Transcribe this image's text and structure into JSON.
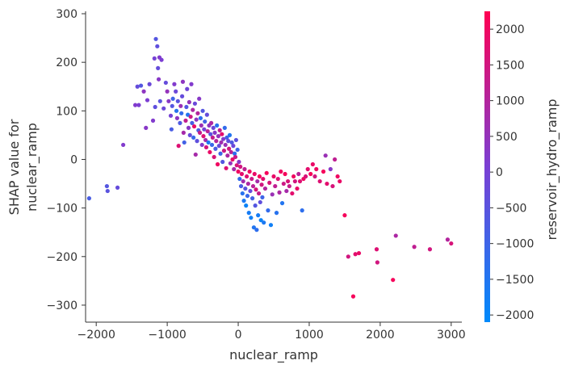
{
  "chart_data": {
    "type": "scatter",
    "title": "",
    "xlabel": "nuclear_ramp",
    "ylabel_lines": [
      "SHAP value for",
      "nuclear_ramp"
    ],
    "xlim": [
      -2150,
      3150
    ],
    "ylim": [
      -335,
      305
    ],
    "x_ticks": [
      -2000,
      -1000,
      0,
      1000,
      2000,
      3000
    ],
    "y_ticks": [
      300,
      200,
      100,
      0,
      -100,
      -200,
      -300
    ],
    "grid": false,
    "colorbar": {
      "label": "reservoir_hydro_ramp",
      "range": [
        -2100,
        2250
      ],
      "ticks": [
        2000,
        1500,
        1000,
        500,
        0,
        -500,
        -1000,
        -1500,
        -2000
      ],
      "low_color": "#008afb",
      "mid_color": "#7a3fd4",
      "high_color": "#ff0052"
    },
    "series": [
      {
        "points": [
          [
            -2100,
            -80,
            -800
          ],
          [
            -1850,
            -55,
            -600
          ],
          [
            -1840,
            -65,
            -500
          ],
          [
            -1700,
            -58,
            -300
          ],
          [
            -1620,
            30,
            200
          ],
          [
            -1450,
            112,
            200
          ],
          [
            -1420,
            150,
            -300
          ],
          [
            -1400,
            112,
            100
          ],
          [
            -1370,
            152,
            -600
          ],
          [
            -1330,
            140,
            400
          ],
          [
            -1300,
            65,
            300
          ],
          [
            -1280,
            122,
            100
          ],
          [
            -1250,
            155,
            -200
          ],
          [
            -1200,
            80,
            200
          ],
          [
            -1180,
            208,
            0
          ],
          [
            -1170,
            108,
            -400
          ],
          [
            -1160,
            248,
            -600
          ],
          [
            -1140,
            233,
            -400
          ],
          [
            -1130,
            188,
            -300
          ],
          [
            -1120,
            165,
            300
          ],
          [
            -1110,
            210,
            200
          ],
          [
            -1100,
            120,
            -500
          ],
          [
            -1080,
            205,
            100
          ],
          [
            -1050,
            105,
            -200
          ],
          [
            -1020,
            158,
            -300
          ],
          [
            -1000,
            140,
            500
          ],
          [
            -980,
            120,
            300
          ],
          [
            -950,
            90,
            0
          ],
          [
            -940,
            62,
            -800
          ],
          [
            -930,
            110,
            -600
          ],
          [
            -920,
            125,
            -1000
          ],
          [
            -900,
            155,
            200
          ],
          [
            -880,
            140,
            -200
          ],
          [
            -870,
            100,
            -1400
          ],
          [
            -860,
            85,
            400
          ],
          [
            -850,
            120,
            -500
          ],
          [
            -840,
            28,
            1700
          ],
          [
            -820,
            75,
            -700
          ],
          [
            -810,
            110,
            600
          ],
          [
            -800,
            95,
            -1200
          ],
          [
            -790,
            130,
            -300
          ],
          [
            -780,
            160,
            400
          ],
          [
            -770,
            55,
            800
          ],
          [
            -760,
            35,
            -900
          ],
          [
            -740,
            80,
            1200
          ],
          [
            -730,
            108,
            -600
          ],
          [
            -720,
            145,
            -100
          ],
          [
            -710,
            92,
            -1500
          ],
          [
            -700,
            65,
            300
          ],
          [
            -690,
            118,
            500
          ],
          [
            -680,
            50,
            -300
          ],
          [
            -670,
            88,
            1400
          ],
          [
            -660,
            155,
            200
          ],
          [
            -650,
            75,
            -800
          ],
          [
            -640,
            102,
            900
          ],
          [
            -630,
            45,
            -1100
          ],
          [
            -620,
            68,
            1900
          ],
          [
            -610,
            115,
            -200
          ],
          [
            -600,
            10,
            800
          ],
          [
            -590,
            82,
            400
          ],
          [
            -580,
            38,
            -400
          ],
          [
            -570,
            95,
            1000
          ],
          [
            -560,
            60,
            -700
          ],
          [
            -550,
            125,
            300
          ],
          [
            -540,
            55,
            1300
          ],
          [
            -530,
            85,
            -1300
          ],
          [
            -520,
            70,
            600
          ],
          [
            -510,
            30,
            200
          ],
          [
            -500,
            100,
            -600
          ],
          [
            -490,
            48,
            1700
          ],
          [
            -480,
            62,
            0
          ],
          [
            -470,
            78,
            -900
          ],
          [
            -460,
            40,
            700
          ],
          [
            -450,
            25,
            1500
          ],
          [
            -440,
            92,
            -300
          ],
          [
            -430,
            58,
            1100
          ],
          [
            -420,
            35,
            -1600
          ],
          [
            -410,
            70,
            400
          ],
          [
            -400,
            15,
            1900
          ],
          [
            -390,
            52,
            -500
          ],
          [
            -380,
            75,
            900
          ],
          [
            -370,
            30,
            -1100
          ],
          [
            -360,
            45,
            1300
          ],
          [
            -350,
            65,
            -200
          ],
          [
            -340,
            5,
            1600
          ],
          [
            -330,
            55,
            300
          ],
          [
            -320,
            22,
            -800
          ],
          [
            -310,
            38,
            1000
          ],
          [
            -300,
            70,
            -1400
          ],
          [
            -290,
            -10,
            2000
          ],
          [
            -280,
            48,
            500
          ],
          [
            -270,
            28,
            -300
          ],
          [
            -260,
            60,
            1200
          ],
          [
            -250,
            12,
            -1000
          ],
          [
            -240,
            35,
            700
          ],
          [
            -230,
            52,
            1800
          ],
          [
            -220,
            -5,
            -600
          ],
          [
            -210,
            42,
            200
          ],
          [
            -200,
            18,
            1400
          ],
          [
            -190,
            65,
            -1200
          ],
          [
            -180,
            30,
            600
          ],
          [
            -170,
            -18,
            1700
          ],
          [
            -160,
            45,
            -900
          ],
          [
            -150,
            8,
            900
          ],
          [
            -140,
            38,
            -400
          ],
          [
            -130,
            22,
            1500
          ],
          [
            -120,
            50,
            -1500
          ],
          [
            -110,
            -8,
            500
          ],
          [
            -100,
            15,
            1100
          ],
          [
            -90,
            35,
            -700
          ],
          [
            -80,
            0,
            1900
          ],
          [
            -70,
            28,
            -200
          ],
          [
            -60,
            -20,
            800
          ],
          [
            -50,
            12,
            -1300
          ],
          [
            -40,
            5,
            1300
          ],
          [
            -30,
            40,
            -500
          ],
          [
            -20,
            -12,
            1600
          ],
          [
            -10,
            20,
            -1000
          ],
          [
            0,
            -25,
            2000
          ],
          [
            10,
            -5,
            300
          ],
          [
            20,
            -40,
            -1200
          ],
          [
            30,
            -15,
            1500
          ],
          [
            40,
            -55,
            -800
          ],
          [
            50,
            -30,
            1800
          ],
          [
            60,
            -70,
            -1400
          ],
          [
            70,
            -45,
            700
          ],
          [
            80,
            -85,
            -1600
          ],
          [
            90,
            -20,
            1200
          ],
          [
            100,
            -60,
            -500
          ],
          [
            110,
            -95,
            -1900
          ],
          [
            120,
            -35,
            1700
          ],
          [
            130,
            -75,
            -1100
          ],
          [
            140,
            -50,
            900
          ],
          [
            150,
            -110,
            -1700
          ],
          [
            160,
            -25,
            2000
          ],
          [
            170,
            -65,
            -300
          ],
          [
            180,
            -120,
            -1800
          ],
          [
            190,
            -40,
            1400
          ],
          [
            200,
            -80,
            -900
          ],
          [
            210,
            -55,
            1100
          ],
          [
            220,
            -140,
            -1500
          ],
          [
            230,
            -30,
            1900
          ],
          [
            240,
            -95,
            -600
          ],
          [
            250,
            -62,
            1600
          ],
          [
            260,
            -145,
            -1300
          ],
          [
            270,
            -45,
            800
          ],
          [
            280,
            -115,
            -1700
          ],
          [
            290,
            -70,
            1300
          ],
          [
            300,
            -35,
            2100
          ],
          [
            310,
            -88,
            -400
          ],
          [
            320,
            -125,
            -1900
          ],
          [
            330,
            -52,
            1500
          ],
          [
            340,
            -78,
            -1000
          ],
          [
            350,
            -40,
            1800
          ],
          [
            360,
            -130,
            -1600
          ],
          [
            380,
            -60,
            1000
          ],
          [
            400,
            -28,
            2100
          ],
          [
            420,
            -105,
            -1200
          ],
          [
            440,
            -48,
            1600
          ],
          [
            460,
            -135,
            -1800
          ],
          [
            480,
            -72,
            600
          ],
          [
            500,
            -35,
            1900
          ],
          [
            520,
            -55,
            1200
          ],
          [
            540,
            -110,
            -1400
          ],
          [
            560,
            -40,
            1700
          ],
          [
            580,
            -68,
            900
          ],
          [
            600,
            -25,
            2000
          ],
          [
            620,
            -90,
            -1500
          ],
          [
            640,
            -50,
            1400
          ],
          [
            660,
            -30,
            2100
          ],
          [
            680,
            -65,
            800
          ],
          [
            700,
            -45,
            1600
          ],
          [
            720,
            -55,
            1300
          ],
          [
            760,
            -70,
            1800
          ],
          [
            780,
            -35,
            2000
          ],
          [
            800,
            -45,
            1500
          ],
          [
            830,
            -60,
            1900
          ],
          [
            850,
            -30,
            1100
          ],
          [
            870,
            -45,
            1700
          ],
          [
            900,
            -105,
            -1300
          ],
          [
            920,
            -40,
            2000
          ],
          [
            950,
            -35,
            1600
          ],
          [
            980,
            -20,
            1800
          ],
          [
            1020,
            -30,
            2100
          ],
          [
            1050,
            -10,
            1900
          ],
          [
            1080,
            -35,
            1500
          ],
          [
            1100,
            -20,
            2000
          ],
          [
            1150,
            -45,
            1700
          ],
          [
            1200,
            -25,
            2100
          ],
          [
            1230,
            8,
            600
          ],
          [
            1250,
            -50,
            1800
          ],
          [
            1300,
            -20,
            300
          ],
          [
            1330,
            -55,
            1600
          ],
          [
            1360,
            0,
            1200
          ],
          [
            1400,
            -35,
            2000
          ],
          [
            1430,
            -45,
            1900
          ],
          [
            1500,
            -115,
            2100
          ],
          [
            1550,
            -200,
            1500
          ],
          [
            1620,
            -282,
            2100
          ],
          [
            1650,
            -195,
            1800
          ],
          [
            1700,
            -193,
            1900
          ],
          [
            1950,
            -185,
            1700
          ],
          [
            1960,
            -212,
            1500
          ],
          [
            2180,
            -248,
            2100
          ],
          [
            2220,
            -157,
            900
          ],
          [
            2480,
            -180,
            1200
          ],
          [
            2700,
            -185,
            1500
          ],
          [
            2950,
            -165,
            1000
          ],
          [
            3000,
            -173,
            1600
          ]
        ]
      }
    ]
  }
}
